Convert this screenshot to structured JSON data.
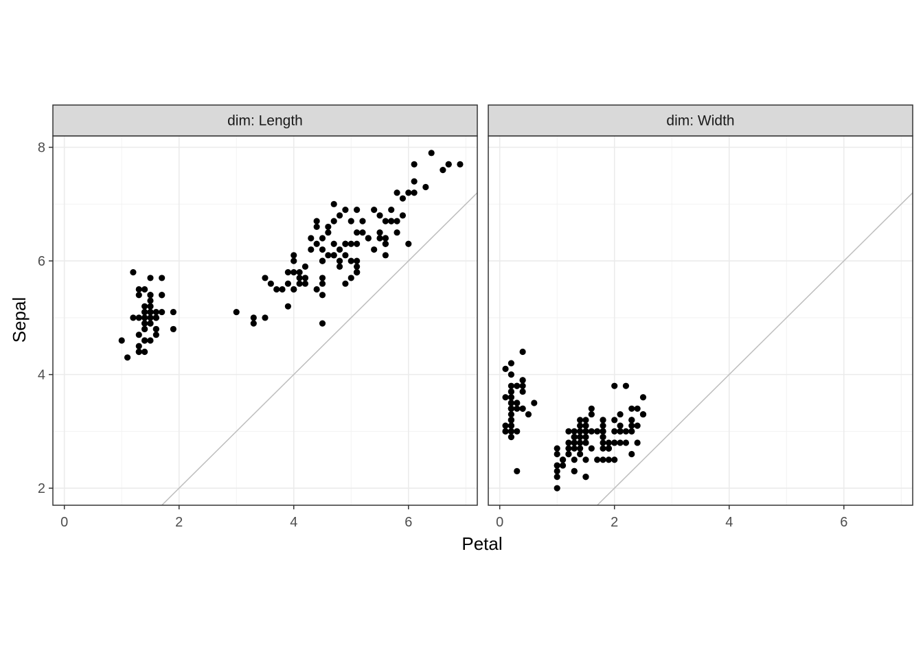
{
  "chart_data": {
    "type": "scatter",
    "xlabel": "Petal",
    "ylabel": "Sepal",
    "xlim": [
      -0.2,
      7.2
    ],
    "ylim": [
      1.7,
      8.2
    ],
    "x_ticks": [
      0,
      2,
      4,
      6
    ],
    "y_ticks": [
      2,
      4,
      6,
      8
    ],
    "grid": true,
    "reference_line": {
      "slope": 1,
      "intercept": 0,
      "color": "#bdbdbd"
    },
    "point_color": "#000000",
    "panels": [
      {
        "label": "dim: Length",
        "points": [
          [
            1.4,
            5.1
          ],
          [
            1.4,
            4.9
          ],
          [
            1.3,
            4.7
          ],
          [
            1.5,
            4.6
          ],
          [
            1.4,
            5.0
          ],
          [
            1.7,
            5.4
          ],
          [
            1.4,
            4.6
          ],
          [
            1.5,
            5.0
          ],
          [
            1.4,
            4.4
          ],
          [
            1.5,
            4.9
          ],
          [
            1.5,
            5.4
          ],
          [
            1.6,
            4.8
          ],
          [
            1.4,
            4.8
          ],
          [
            1.1,
            4.3
          ],
          [
            1.2,
            5.8
          ],
          [
            1.5,
            5.7
          ],
          [
            1.3,
            5.4
          ],
          [
            1.4,
            5.1
          ],
          [
            1.7,
            5.7
          ],
          [
            1.5,
            5.1
          ],
          [
            1.7,
            5.4
          ],
          [
            1.5,
            5.1
          ],
          [
            1.0,
            4.6
          ],
          [
            1.7,
            5.1
          ],
          [
            1.9,
            4.8
          ],
          [
            1.6,
            5.0
          ],
          [
            1.6,
            5.0
          ],
          [
            1.5,
            5.2
          ],
          [
            1.4,
            5.2
          ],
          [
            1.6,
            4.7
          ],
          [
            1.6,
            4.8
          ],
          [
            1.5,
            5.4
          ],
          [
            1.5,
            5.2
          ],
          [
            1.4,
            5.5
          ],
          [
            1.5,
            4.9
          ],
          [
            1.2,
            5.0
          ],
          [
            1.3,
            5.5
          ],
          [
            1.4,
            4.9
          ],
          [
            1.3,
            4.4
          ],
          [
            1.5,
            5.1
          ],
          [
            1.3,
            5.0
          ],
          [
            1.3,
            4.5
          ],
          [
            1.3,
            4.4
          ],
          [
            1.6,
            5.0
          ],
          [
            1.9,
            5.1
          ],
          [
            1.4,
            4.8
          ],
          [
            1.6,
            5.1
          ],
          [
            1.4,
            4.6
          ],
          [
            1.5,
            5.3
          ],
          [
            1.4,
            5.0
          ],
          [
            4.7,
            7.0
          ],
          [
            4.5,
            6.4
          ],
          [
            4.9,
            6.9
          ],
          [
            4.0,
            5.5
          ],
          [
            4.6,
            6.5
          ],
          [
            4.5,
            5.7
          ],
          [
            4.7,
            6.3
          ],
          [
            3.3,
            4.9
          ],
          [
            4.6,
            6.6
          ],
          [
            3.9,
            5.2
          ],
          [
            3.5,
            5.0
          ],
          [
            4.2,
            5.9
          ],
          [
            4.0,
            6.0
          ],
          [
            4.7,
            6.1
          ],
          [
            3.6,
            5.6
          ],
          [
            4.4,
            6.7
          ],
          [
            4.5,
            5.6
          ],
          [
            4.1,
            5.8
          ],
          [
            4.5,
            6.2
          ],
          [
            3.9,
            5.6
          ],
          [
            4.8,
            5.9
          ],
          [
            4.0,
            6.1
          ],
          [
            4.9,
            6.3
          ],
          [
            4.7,
            6.1
          ],
          [
            4.3,
            6.4
          ],
          [
            4.4,
            6.6
          ],
          [
            4.8,
            6.8
          ],
          [
            5.0,
            6.7
          ],
          [
            4.5,
            6.0
          ],
          [
            3.5,
            5.7
          ],
          [
            3.8,
            5.5
          ],
          [
            3.7,
            5.5
          ],
          [
            3.9,
            5.8
          ],
          [
            5.1,
            6.0
          ],
          [
            4.5,
            5.4
          ],
          [
            4.5,
            6.0
          ],
          [
            4.7,
            6.7
          ],
          [
            4.4,
            6.3
          ],
          [
            4.1,
            5.6
          ],
          [
            4.0,
            5.5
          ],
          [
            4.4,
            5.5
          ],
          [
            4.6,
            6.1
          ],
          [
            4.0,
            5.8
          ],
          [
            3.3,
            5.0
          ],
          [
            4.2,
            5.6
          ],
          [
            4.2,
            5.7
          ],
          [
            4.2,
            5.7
          ],
          [
            4.3,
            6.2
          ],
          [
            3.0,
            5.1
          ],
          [
            4.1,
            5.7
          ],
          [
            6.0,
            6.3
          ],
          [
            5.1,
            5.8
          ],
          [
            5.9,
            7.1
          ],
          [
            5.6,
            6.3
          ],
          [
            5.8,
            6.5
          ],
          [
            6.6,
            7.6
          ],
          [
            4.5,
            4.9
          ],
          [
            6.3,
            7.3
          ],
          [
            5.8,
            6.7
          ],
          [
            6.1,
            7.2
          ],
          [
            5.1,
            6.5
          ],
          [
            5.3,
            6.4
          ],
          [
            5.5,
            6.8
          ],
          [
            5.0,
            5.7
          ],
          [
            5.1,
            5.8
          ],
          [
            5.3,
            6.4
          ],
          [
            5.5,
            6.5
          ],
          [
            6.7,
            7.7
          ],
          [
            6.9,
            7.7
          ],
          [
            5.0,
            6.0
          ],
          [
            5.7,
            6.9
          ],
          [
            4.9,
            5.6
          ],
          [
            6.7,
            7.7
          ],
          [
            4.9,
            6.3
          ],
          [
            5.7,
            6.7
          ],
          [
            6.0,
            7.2
          ],
          [
            4.8,
            6.2
          ],
          [
            4.9,
            6.1
          ],
          [
            5.6,
            6.4
          ],
          [
            5.8,
            7.2
          ],
          [
            6.1,
            7.4
          ],
          [
            6.4,
            7.9
          ],
          [
            5.6,
            6.4
          ],
          [
            5.1,
            6.3
          ],
          [
            5.6,
            6.1
          ],
          [
            6.1,
            7.7
          ],
          [
            5.6,
            6.3
          ],
          [
            5.5,
            6.4
          ],
          [
            4.8,
            6.0
          ],
          [
            5.4,
            6.9
          ],
          [
            5.6,
            6.7
          ],
          [
            5.1,
            6.9
          ],
          [
            5.1,
            5.8
          ],
          [
            5.9,
            6.8
          ],
          [
            5.7,
            6.7
          ],
          [
            5.2,
            6.7
          ],
          [
            5.0,
            6.3
          ],
          [
            5.2,
            6.5
          ],
          [
            5.4,
            6.2
          ],
          [
            5.1,
            5.9
          ]
        ]
      },
      {
        "label": "dim: Width",
        "points": [
          [
            0.2,
            3.5
          ],
          [
            0.2,
            3.0
          ],
          [
            0.2,
            3.2
          ],
          [
            0.2,
            3.1
          ],
          [
            0.2,
            3.6
          ],
          [
            0.4,
            3.9
          ],
          [
            0.3,
            3.4
          ],
          [
            0.2,
            3.4
          ],
          [
            0.2,
            2.9
          ],
          [
            0.1,
            3.1
          ],
          [
            0.2,
            3.7
          ],
          [
            0.2,
            3.4
          ],
          [
            0.1,
            3.0
          ],
          [
            0.1,
            3.0
          ],
          [
            0.2,
            4.0
          ],
          [
            0.4,
            4.4
          ],
          [
            0.4,
            3.9
          ],
          [
            0.3,
            3.5
          ],
          [
            0.3,
            3.8
          ],
          [
            0.3,
            3.8
          ],
          [
            0.2,
            3.4
          ],
          [
            0.4,
            3.7
          ],
          [
            0.2,
            3.6
          ],
          [
            0.5,
            3.3
          ],
          [
            0.2,
            3.4
          ],
          [
            0.2,
            3.0
          ],
          [
            0.4,
            3.4
          ],
          [
            0.2,
            3.5
          ],
          [
            0.2,
            3.4
          ],
          [
            0.2,
            3.2
          ],
          [
            0.2,
            3.1
          ],
          [
            0.4,
            3.4
          ],
          [
            0.1,
            4.1
          ],
          [
            0.2,
            4.2
          ],
          [
            0.2,
            3.1
          ],
          [
            0.2,
            3.2
          ],
          [
            0.2,
            3.5
          ],
          [
            0.1,
            3.6
          ],
          [
            0.2,
            3.0
          ],
          [
            0.2,
            3.4
          ],
          [
            0.3,
            3.5
          ],
          [
            0.3,
            2.3
          ],
          [
            0.2,
            3.2
          ],
          [
            0.6,
            3.5
          ],
          [
            0.4,
            3.8
          ],
          [
            0.3,
            3.0
          ],
          [
            0.2,
            3.8
          ],
          [
            0.2,
            3.2
          ],
          [
            0.2,
            3.7
          ],
          [
            0.2,
            3.3
          ],
          [
            1.4,
            3.2
          ],
          [
            1.5,
            3.2
          ],
          [
            1.5,
            3.1
          ],
          [
            1.3,
            2.3
          ],
          [
            1.5,
            2.8
          ],
          [
            1.3,
            2.8
          ],
          [
            1.6,
            3.3
          ],
          [
            1.0,
            2.4
          ],
          [
            1.3,
            2.9
          ],
          [
            1.4,
            2.7
          ],
          [
            1.0,
            2.0
          ],
          [
            1.5,
            3.0
          ],
          [
            1.0,
            2.2
          ],
          [
            1.4,
            2.9
          ],
          [
            1.3,
            2.9
          ],
          [
            1.4,
            3.1
          ],
          [
            1.5,
            3.0
          ],
          [
            1.0,
            2.7
          ],
          [
            1.5,
            2.2
          ],
          [
            1.1,
            2.5
          ],
          [
            1.8,
            3.2
          ],
          [
            1.3,
            2.8
          ],
          [
            1.5,
            2.5
          ],
          [
            1.2,
            2.8
          ],
          [
            1.3,
            2.9
          ],
          [
            1.4,
            3.0
          ],
          [
            1.4,
            2.8
          ],
          [
            1.7,
            3.0
          ],
          [
            1.5,
            2.9
          ],
          [
            1.0,
            2.6
          ],
          [
            1.1,
            2.4
          ],
          [
            1.0,
            2.4
          ],
          [
            1.2,
            2.7
          ],
          [
            1.6,
            2.7
          ],
          [
            1.5,
            3.0
          ],
          [
            1.6,
            3.4
          ],
          [
            1.5,
            3.1
          ],
          [
            1.3,
            2.3
          ],
          [
            1.3,
            3.0
          ],
          [
            1.3,
            2.5
          ],
          [
            1.2,
            2.6
          ],
          [
            1.4,
            3.0
          ],
          [
            1.2,
            2.6
          ],
          [
            1.0,
            2.3
          ],
          [
            1.3,
            2.7
          ],
          [
            1.2,
            3.0
          ],
          [
            1.3,
            2.9
          ],
          [
            1.3,
            2.9
          ],
          [
            1.1,
            2.5
          ],
          [
            1.3,
            2.8
          ],
          [
            2.5,
            3.3
          ],
          [
            1.9,
            2.7
          ],
          [
            2.1,
            3.0
          ],
          [
            1.8,
            2.9
          ],
          [
            2.2,
            3.0
          ],
          [
            2.1,
            3.0
          ],
          [
            1.7,
            2.5
          ],
          [
            1.8,
            2.9
          ],
          [
            1.8,
            2.5
          ],
          [
            2.5,
            3.6
          ],
          [
            2.0,
            3.2
          ],
          [
            1.9,
            2.7
          ],
          [
            2.1,
            3.0
          ],
          [
            2.0,
            2.5
          ],
          [
            2.4,
            2.8
          ],
          [
            2.3,
            3.2
          ],
          [
            1.8,
            3.0
          ],
          [
            2.2,
            3.8
          ],
          [
            2.3,
            2.6
          ],
          [
            1.5,
            2.2
          ],
          [
            2.3,
            3.2
          ],
          [
            2.0,
            2.8
          ],
          [
            2.0,
            2.8
          ],
          [
            1.8,
            2.7
          ],
          [
            2.1,
            3.3
          ],
          [
            1.8,
            3.2
          ],
          [
            1.8,
            2.8
          ],
          [
            1.8,
            3.0
          ],
          [
            2.1,
            2.8
          ],
          [
            1.6,
            3.0
          ],
          [
            1.9,
            2.8
          ],
          [
            2.0,
            3.8
          ],
          [
            2.2,
            2.8
          ],
          [
            1.5,
            2.8
          ],
          [
            1.4,
            2.6
          ],
          [
            2.3,
            3.0
          ],
          [
            2.4,
            3.4
          ],
          [
            1.8,
            3.1
          ],
          [
            1.8,
            3.0
          ],
          [
            2.1,
            3.1
          ],
          [
            2.4,
            3.1
          ],
          [
            2.3,
            3.1
          ],
          [
            1.9,
            2.7
          ],
          [
            2.3,
            3.2
          ],
          [
            2.5,
            3.3
          ],
          [
            2.3,
            3.0
          ],
          [
            1.9,
            2.5
          ],
          [
            2.0,
            3.0
          ],
          [
            2.3,
            3.4
          ],
          [
            1.8,
            3.0
          ]
        ]
      }
    ]
  }
}
